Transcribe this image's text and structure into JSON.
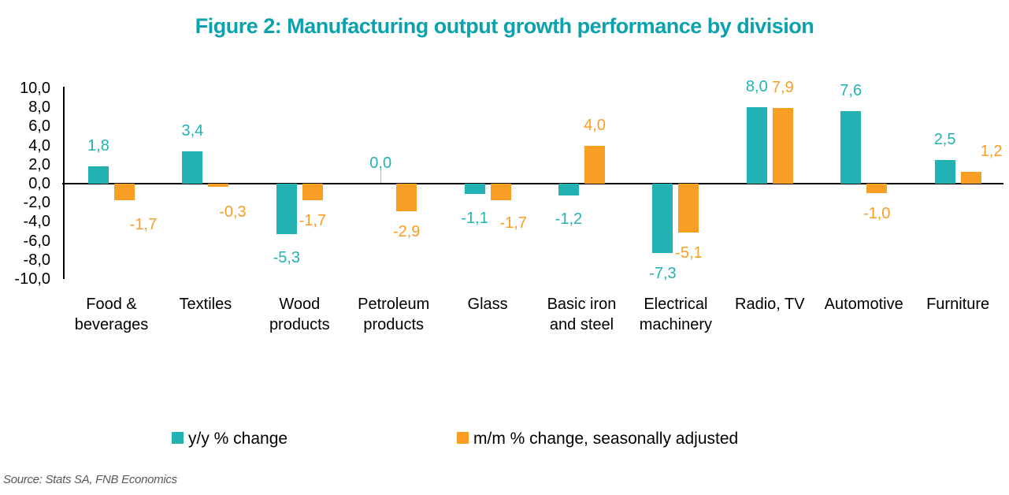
{
  "title": "Figure 2: Manufacturing output growth performance by division",
  "source": "Source: Stats SA, FNB Economics",
  "colors": {
    "teal": "#22b2b4",
    "orange": "#f89e24",
    "title_teal": "#0ba1ad",
    "axis_black": "#000000",
    "source_gray": "#595959",
    "zero_marker_gray": "#b3b3b3"
  },
  "legend": {
    "items": [
      {
        "label": "y/y % change",
        "color": "teal"
      },
      {
        "label": "m/m % change, seasonally adjusted",
        "color": "orange"
      }
    ]
  },
  "chart_data": {
    "type": "bar",
    "title": "Figure 2: Manufacturing output growth performance by division",
    "categories": [
      "Food &\nbeverages",
      "Textiles",
      "Wood\nproducts",
      "Petroleum\nproducts",
      "Glass",
      "Basic iron\nand steel",
      "Electrical\nmachinery",
      "Radio, TV",
      "Automotive",
      "Furniture"
    ],
    "series": [
      {
        "name": "y/y % change",
        "color": "teal",
        "values": [
          1.8,
          3.4,
          -5.3,
          0.0,
          -1.1,
          -1.2,
          -7.3,
          8.0,
          7.6,
          2.5
        ],
        "labels": [
          "1,8",
          "3,4",
          "-5,3",
          "0,0",
          "-1,1",
          "-1,2",
          "-7,3",
          "8,0",
          "7,6",
          "2,5"
        ]
      },
      {
        "name": "m/m % change, seasonally adjusted",
        "color": "orange",
        "values": [
          -1.7,
          -0.3,
          -1.7,
          -2.9,
          -1.7,
          4.0,
          -5.1,
          7.9,
          -1.0,
          1.2
        ],
        "labels": [
          "-1,7",
          "-0,3",
          "-1,7",
          "-2,9",
          "-1,7",
          "4,0",
          "-5,1",
          "7,9",
          "-1,0",
          "1,2"
        ]
      }
    ],
    "ylim": [
      -10,
      10
    ],
    "ytick_step": 2,
    "ytick_labels": [
      "10,0",
      "8,0",
      "6,0",
      "4,0",
      "2,0",
      "0,0",
      "-2,0",
      "-4,0",
      "-6,0",
      "-8,0",
      "-10,0"
    ],
    "decimal_separator": ",",
    "grid": "none",
    "legend_position": "bottom"
  }
}
